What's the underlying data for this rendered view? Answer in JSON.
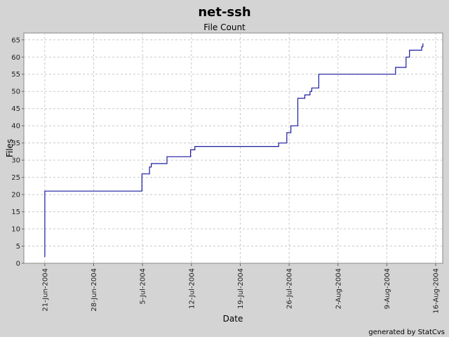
{
  "chart_data": {
    "type": "line",
    "step": true,
    "title": "net-ssh",
    "subtitle": "File Count",
    "xlabel": "Date",
    "ylabel": "Files",
    "x_type": "date",
    "xlim": [
      "2004-06-18",
      "2004-08-17"
    ],
    "ylim": [
      0,
      67
    ],
    "yticks": [
      0,
      5,
      10,
      15,
      20,
      25,
      30,
      35,
      40,
      45,
      50,
      55,
      60,
      65
    ],
    "xticks": [
      {
        "date": "2004-06-21",
        "label": "21-Jun-2004"
      },
      {
        "date": "2004-06-28",
        "label": "28-Jun-2004"
      },
      {
        "date": "2004-07-05",
        "label": "5-Jul-2004"
      },
      {
        "date": "2004-07-12",
        "label": "12-Jul-2004"
      },
      {
        "date": "2004-07-19",
        "label": "19-Jul-2004"
      },
      {
        "date": "2004-07-26",
        "label": "26-Jul-2004"
      },
      {
        "date": "2004-08-02",
        "label": "2-Aug-2004"
      },
      {
        "date": "2004-08-09",
        "label": "9-Aug-2004"
      },
      {
        "date": "2004-08-16",
        "label": "16-Aug-2004"
      }
    ],
    "grid": true,
    "series": [
      {
        "color": "#1a1aa0",
        "points": [
          [
            "2004-06-20T22:00",
            2
          ],
          [
            "2004-06-21T00:00",
            21
          ],
          [
            "2004-07-04T22:00",
            26
          ],
          [
            "2004-07-06T00:00",
            28
          ],
          [
            "2004-07-06T06:00",
            29
          ],
          [
            "2004-07-08T12:00",
            31
          ],
          [
            "2004-07-11T21:00",
            33
          ],
          [
            "2004-07-12T12:00",
            34
          ],
          [
            "2004-07-24T12:00",
            35
          ],
          [
            "2004-07-25T16:00",
            38
          ],
          [
            "2004-07-26T06:00",
            40
          ],
          [
            "2004-07-27T06:00",
            48
          ],
          [
            "2004-07-28T06:00",
            49
          ],
          [
            "2004-07-29T00:00",
            50
          ],
          [
            "2004-07-29T06:00",
            51
          ],
          [
            "2004-07-30T06:00",
            55
          ],
          [
            "2004-08-10T06:00",
            57
          ],
          [
            "2004-08-11T18:00",
            60
          ],
          [
            "2004-08-12T06:00",
            62
          ],
          [
            "2004-08-14T00:00",
            63
          ],
          [
            "2004-08-14T04:00",
            64
          ]
        ]
      }
    ]
  },
  "footer": "generated by StatCvs"
}
